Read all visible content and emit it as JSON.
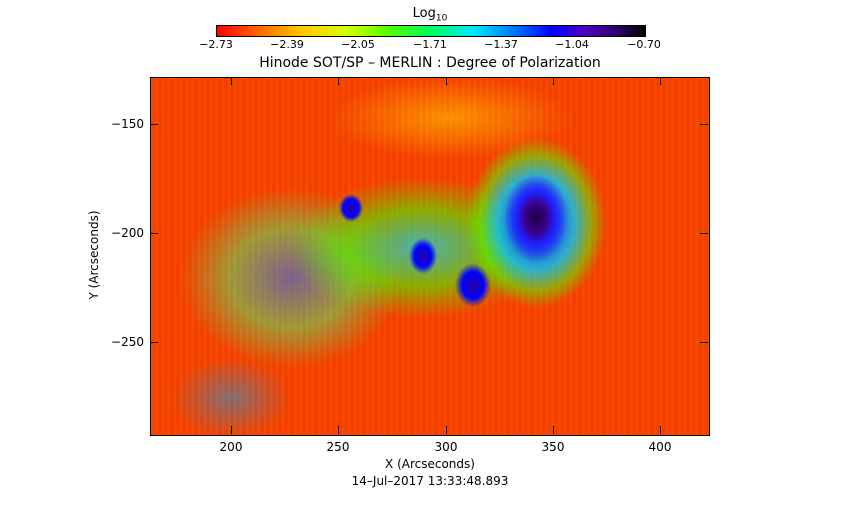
{
  "colorbar": {
    "title": "Log",
    "title_subscript": "10",
    "ticks": [
      "−2.73",
      "−2.39",
      "−2.05",
      "−1.71",
      "−1.37",
      "−1.04",
      "−0.70"
    ]
  },
  "plot_title": "Hinode SOT/SP – MERLIN : Degree of Polarization",
  "x_axis": {
    "label": "X (Arcseconds)",
    "ticks": [
      "200",
      "250",
      "300",
      "350",
      "400"
    ]
  },
  "y_axis": {
    "label": "Y (Arcseconds)",
    "ticks": [
      "−150",
      "−200",
      "−250"
    ]
  },
  "timestamp": "14–Jul–2017  13:33:48.893"
}
